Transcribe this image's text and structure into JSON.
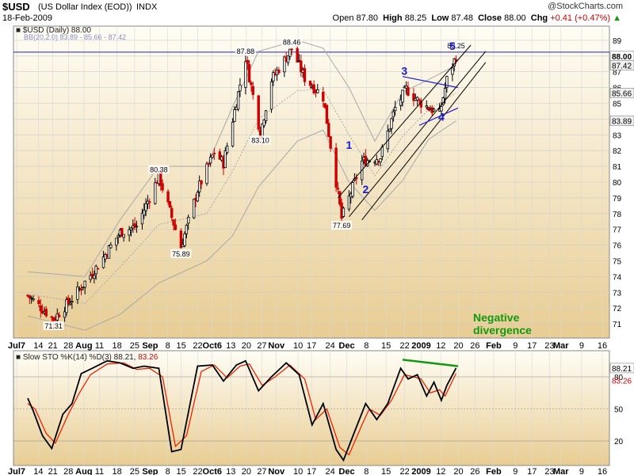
{
  "header": {
    "symbol": "$USD",
    "name": "(US Dollar Index (EOD))",
    "exchange": "INDX",
    "date": "18-Feb-2009",
    "watermark": "@StockCharts.com",
    "open_label": "Open",
    "open": "87.80",
    "high_label": "High",
    "high": "88.25",
    "low_label": "Low",
    "low": "87.48",
    "close_label": "Close",
    "close": "88.00",
    "chg_label": "Chg",
    "chg": "+0.41 (+0.47%)",
    "chg_arrow": "▲"
  },
  "price_panel": {
    "legend_title": "■ $USD (Daily) 88.00",
    "bb_legend": "BB(20,2.0) 83.89 - 85.66 - 87.42"
  },
  "sto_panel": {
    "legend_black": "■ Slow STO %K(14) %D(3) 88.21,",
    "legend_red": "83.26"
  },
  "colors": {
    "background_top": "#fffdf5",
    "background_bottom": "#e8cd93",
    "candle_up": "#000000",
    "candle_down": "#cc0000",
    "bollinger": "#a8a8a8",
    "channel": "#000000",
    "triangle": "#1a1ad0",
    "wave_label": "#1a1acc",
    "divergence": "#119911",
    "sto_k": "#000000",
    "sto_d": "#ee2200"
  },
  "annotations": {
    "wave_labels": [
      "1",
      "2",
      "3",
      "4",
      "5"
    ],
    "divergence_text_1": "Negative",
    "divergence_text_2": "divergence"
  },
  "chart_data": {
    "type": "line",
    "title": "$USD (Daily) 88.00",
    "ylim": [
      70,
      89
    ],
    "yticks": [
      71,
      72,
      73,
      74,
      75,
      76,
      77,
      78,
      79,
      80,
      81,
      82,
      83,
      84,
      85,
      86,
      87,
      88,
      89
    ],
    "right_axis_labels": [
      "88.00",
      "87.42",
      "85.66",
      "83.89"
    ],
    "x_labels": [
      "Jul7",
      "14",
      "21",
      "28",
      "Aug",
      "11",
      "18",
      "25",
      "Sep",
      "8",
      "15",
      "22",
      "Oct6",
      "13",
      "20",
      "27",
      "Nov",
      "10",
      "17",
      "24",
      "Dec",
      "8",
      "15",
      "22",
      "2009",
      "12",
      "20",
      "26",
      "Feb",
      "9",
      "17",
      "23",
      "Mar",
      "9",
      "16"
    ],
    "price_anchors": [
      {
        "date": "2008-07-01",
        "value": 72.8
      },
      {
        "date": "2008-07-15",
        "value": 71.31
      },
      {
        "date": "2008-07-25",
        "value": 72.6
      },
      {
        "date": "2008-08-08",
        "value": 74.7
      },
      {
        "date": "2008-08-20",
        "value": 76.8
      },
      {
        "date": "2008-08-29",
        "value": 77.2
      },
      {
        "date": "2008-09-10",
        "value": 80.38
      },
      {
        "date": "2008-09-22",
        "value": 75.89
      },
      {
        "date": "2008-10-01",
        "value": 79.5
      },
      {
        "date": "2008-10-10",
        "value": 81.9
      },
      {
        "date": "2008-10-15",
        "value": 81.2
      },
      {
        "date": "2008-10-27",
        "value": 87.88
      },
      {
        "date": "2008-11-04",
        "value": 83.1
      },
      {
        "date": "2008-11-10",
        "value": 86.5
      },
      {
        "date": "2008-11-21",
        "value": 88.46
      },
      {
        "date": "2008-11-28",
        "value": 86.6
      },
      {
        "date": "2008-12-08",
        "value": 85.4
      },
      {
        "date": "2008-12-18",
        "value": 77.69
      },
      {
        "date": "2008-12-29",
        "value": 81.3
      },
      {
        "date": "2009-01-08",
        "value": 81.6
      },
      {
        "date": "2009-01-16",
        "value": 84.7
      },
      {
        "date": "2009-01-22",
        "value": 85.9
      },
      {
        "date": "2009-01-29",
        "value": 85.1
      },
      {
        "date": "2009-02-09",
        "value": 84.3
      },
      {
        "date": "2009-02-13",
        "value": 86.5
      },
      {
        "date": "2009-02-18",
        "value": 88.0
      }
    ],
    "price_labels": [
      {
        "date": "2008-07-15",
        "value": 71.31,
        "text": "71.31"
      },
      {
        "date": "2008-09-10",
        "value": 80.38,
        "text": "80.38"
      },
      {
        "date": "2008-09-22",
        "value": 75.89,
        "text": "75.89"
      },
      {
        "date": "2008-10-27",
        "value": 87.88,
        "text": "87.88"
      },
      {
        "date": "2008-11-04",
        "value": 83.1,
        "text": "83.10"
      },
      {
        "date": "2008-11-21",
        "value": 88.46,
        "text": "88.46"
      },
      {
        "date": "2008-12-18",
        "value": 77.69,
        "text": "77.69"
      },
      {
        "date": "2009-02-18",
        "value": 88.25,
        "text": "88.25"
      }
    ],
    "bollinger_upper": [
      {
        "date": "2008-07-01",
        "value": 74.3
      },
      {
        "date": "2008-08-01",
        "value": 74.0
      },
      {
        "date": "2008-08-20",
        "value": 77.6
      },
      {
        "date": "2008-09-10",
        "value": 81.0
      },
      {
        "date": "2008-10-06",
        "value": 81.0
      },
      {
        "date": "2008-10-20",
        "value": 84.8
      },
      {
        "date": "2008-11-03",
        "value": 88.3
      },
      {
        "date": "2008-11-24",
        "value": 89.0
      },
      {
        "date": "2008-12-08",
        "value": 88.5
      },
      {
        "date": "2008-12-22",
        "value": 86.0
      },
      {
        "date": "2009-01-05",
        "value": 82.6
      },
      {
        "date": "2009-01-20",
        "value": 85.7
      },
      {
        "date": "2009-02-03",
        "value": 86.5
      },
      {
        "date": "2009-02-18",
        "value": 87.42
      }
    ],
    "bollinger_middle": [
      {
        "date": "2008-07-01",
        "value": 72.9
      },
      {
        "date": "2008-08-01",
        "value": 72.3
      },
      {
        "date": "2008-08-20",
        "value": 74.6
      },
      {
        "date": "2008-09-10",
        "value": 77.3
      },
      {
        "date": "2008-10-06",
        "value": 78.0
      },
      {
        "date": "2008-10-20",
        "value": 80.7
      },
      {
        "date": "2008-11-03",
        "value": 84.0
      },
      {
        "date": "2008-11-24",
        "value": 85.8
      },
      {
        "date": "2008-12-08",
        "value": 85.9
      },
      {
        "date": "2008-12-22",
        "value": 83.0
      },
      {
        "date": "2009-01-05",
        "value": 80.4
      },
      {
        "date": "2009-01-20",
        "value": 82.9
      },
      {
        "date": "2009-02-03",
        "value": 84.6
      },
      {
        "date": "2009-02-18",
        "value": 85.66
      }
    ],
    "bollinger_lower": [
      {
        "date": "2008-07-01",
        "value": 71.5
      },
      {
        "date": "2008-08-01",
        "value": 70.6
      },
      {
        "date": "2008-08-20",
        "value": 71.6
      },
      {
        "date": "2008-09-10",
        "value": 73.6
      },
      {
        "date": "2008-10-06",
        "value": 75.0
      },
      {
        "date": "2008-10-20",
        "value": 76.6
      },
      {
        "date": "2008-11-03",
        "value": 79.7
      },
      {
        "date": "2008-11-24",
        "value": 82.6
      },
      {
        "date": "2008-12-08",
        "value": 83.3
      },
      {
        "date": "2008-12-22",
        "value": 80.0
      },
      {
        "date": "2009-01-05",
        "value": 78.2
      },
      {
        "date": "2009-01-20",
        "value": 80.1
      },
      {
        "date": "2009-02-03",
        "value": 82.7
      },
      {
        "date": "2009-02-18",
        "value": 83.89
      }
    ],
    "trend_channel": [
      {
        "from": {
          "date": "2008-12-16",
          "value": 79.0
        },
        "to": {
          "date": "2009-02-26",
          "value": 88.7
        }
      },
      {
        "from": {
          "date": "2008-12-22",
          "value": 77.8
        },
        "to": {
          "date": "2009-03-06",
          "value": 88.3
        }
      },
      {
        "from": {
          "date": "2008-12-29",
          "value": 77.6
        },
        "to": {
          "date": "2009-03-06",
          "value": 87.6
        }
      }
    ],
    "triangle_lines": [
      {
        "from": {
          "date": "2009-01-20",
          "value": 86.7
        },
        "to": {
          "date": "2009-02-19",
          "value": 86.0
        }
      },
      {
        "from": {
          "date": "2009-01-29",
          "value": 83.6
        },
        "to": {
          "date": "2009-02-19",
          "value": 84.7
        }
      }
    ],
    "wave_points": [
      {
        "label": "1",
        "date": "2008-12-22",
        "value": 82.1
      },
      {
        "label": "2",
        "date": "2008-12-31",
        "value": 79.3
      },
      {
        "label": "3",
        "date": "2009-01-21",
        "value": 86.8
      },
      {
        "label": "4",
        "date": "2009-02-10",
        "value": 83.9
      },
      {
        "label": "5",
        "date": "2009-02-16",
        "value": 88.4
      }
    ],
    "stochastic": {
      "name": "Slow STO %K(14) %D(3)",
      "ylim": [
        0,
        100
      ],
      "yticks": [
        20,
        50,
        80
      ],
      "last_k": 88.21,
      "last_d": 83.26,
      "k": [
        {
          "date": "2008-07-01",
          "value": 60
        },
        {
          "date": "2008-07-04",
          "value": 48
        },
        {
          "date": "2008-07-09",
          "value": 25
        },
        {
          "date": "2008-07-14",
          "value": 13
        },
        {
          "date": "2008-07-20",
          "value": 45
        },
        {
          "date": "2008-07-25",
          "value": 55
        },
        {
          "date": "2008-07-30",
          "value": 83
        },
        {
          "date": "2008-08-05",
          "value": 88
        },
        {
          "date": "2008-08-13",
          "value": 95
        },
        {
          "date": "2008-08-20",
          "value": 93
        },
        {
          "date": "2008-08-27",
          "value": 88
        },
        {
          "date": "2008-09-02",
          "value": 90
        },
        {
          "date": "2008-09-10",
          "value": 88
        },
        {
          "date": "2008-09-17",
          "value": 10
        },
        {
          "date": "2008-09-22",
          "value": 12
        },
        {
          "date": "2008-10-01",
          "value": 90
        },
        {
          "date": "2008-10-09",
          "value": 91
        },
        {
          "date": "2008-10-15",
          "value": 76
        },
        {
          "date": "2008-10-22",
          "value": 91
        },
        {
          "date": "2008-10-27",
          "value": 95
        },
        {
          "date": "2008-11-03",
          "value": 67
        },
        {
          "date": "2008-11-10",
          "value": 80
        },
        {
          "date": "2008-11-18",
          "value": 93
        },
        {
          "date": "2008-11-25",
          "value": 82
        },
        {
          "date": "2008-12-02",
          "value": 35
        },
        {
          "date": "2008-12-08",
          "value": 55
        },
        {
          "date": "2008-12-15",
          "value": 12
        },
        {
          "date": "2008-12-19",
          "value": 2
        },
        {
          "date": "2008-12-26",
          "value": 33
        },
        {
          "date": "2008-12-31",
          "value": 55
        },
        {
          "date": "2009-01-06",
          "value": 40
        },
        {
          "date": "2009-01-12",
          "value": 55
        },
        {
          "date": "2009-01-19",
          "value": 88
        },
        {
          "date": "2009-01-23",
          "value": 78
        },
        {
          "date": "2009-01-28",
          "value": 82
        },
        {
          "date": "2009-02-02",
          "value": 62
        },
        {
          "date": "2009-02-06",
          "value": 75
        },
        {
          "date": "2009-02-10",
          "value": 58
        },
        {
          "date": "2009-02-13",
          "value": 72
        },
        {
          "date": "2009-02-18",
          "value": 88.21
        }
      ],
      "d": [
        {
          "date": "2008-07-01",
          "value": 55
        },
        {
          "date": "2008-07-05",
          "value": 50
        },
        {
          "date": "2008-07-11",
          "value": 27
        },
        {
          "date": "2008-07-16",
          "value": 18
        },
        {
          "date": "2008-07-23",
          "value": 45
        },
        {
          "date": "2008-07-29",
          "value": 65
        },
        {
          "date": "2008-08-04",
          "value": 82
        },
        {
          "date": "2008-08-13",
          "value": 92
        },
        {
          "date": "2008-08-22",
          "value": 93
        },
        {
          "date": "2008-08-29",
          "value": 87
        },
        {
          "date": "2008-09-05",
          "value": 88
        },
        {
          "date": "2008-09-12",
          "value": 80
        },
        {
          "date": "2008-09-19",
          "value": 15
        },
        {
          "date": "2008-09-25",
          "value": 25
        },
        {
          "date": "2008-10-03",
          "value": 85
        },
        {
          "date": "2008-10-10",
          "value": 91
        },
        {
          "date": "2008-10-17",
          "value": 79
        },
        {
          "date": "2008-10-24",
          "value": 90
        },
        {
          "date": "2008-10-29",
          "value": 92
        },
        {
          "date": "2008-11-05",
          "value": 72
        },
        {
          "date": "2008-11-12",
          "value": 80
        },
        {
          "date": "2008-11-20",
          "value": 91
        },
        {
          "date": "2008-11-28",
          "value": 78
        },
        {
          "date": "2008-12-04",
          "value": 40
        },
        {
          "date": "2008-12-10",
          "value": 50
        },
        {
          "date": "2008-12-17",
          "value": 14
        },
        {
          "date": "2008-12-22",
          "value": 7
        },
        {
          "date": "2008-12-29",
          "value": 35
        },
        {
          "date": "2009-01-02",
          "value": 50
        },
        {
          "date": "2009-01-08",
          "value": 44
        },
        {
          "date": "2009-01-14",
          "value": 58
        },
        {
          "date": "2009-01-21",
          "value": 82
        },
        {
          "date": "2009-01-26",
          "value": 80
        },
        {
          "date": "2009-01-30",
          "value": 78
        },
        {
          "date": "2009-02-04",
          "value": 65
        },
        {
          "date": "2009-02-09",
          "value": 68
        },
        {
          "date": "2009-02-12",
          "value": 62
        },
        {
          "date": "2009-02-18",
          "value": 83.26
        }
      ]
    },
    "divergence_line": {
      "from": {
        "date": "2009-01-20",
        "value": 96
      },
      "to": {
        "date": "2009-02-19",
        "value": 90
      }
    }
  }
}
